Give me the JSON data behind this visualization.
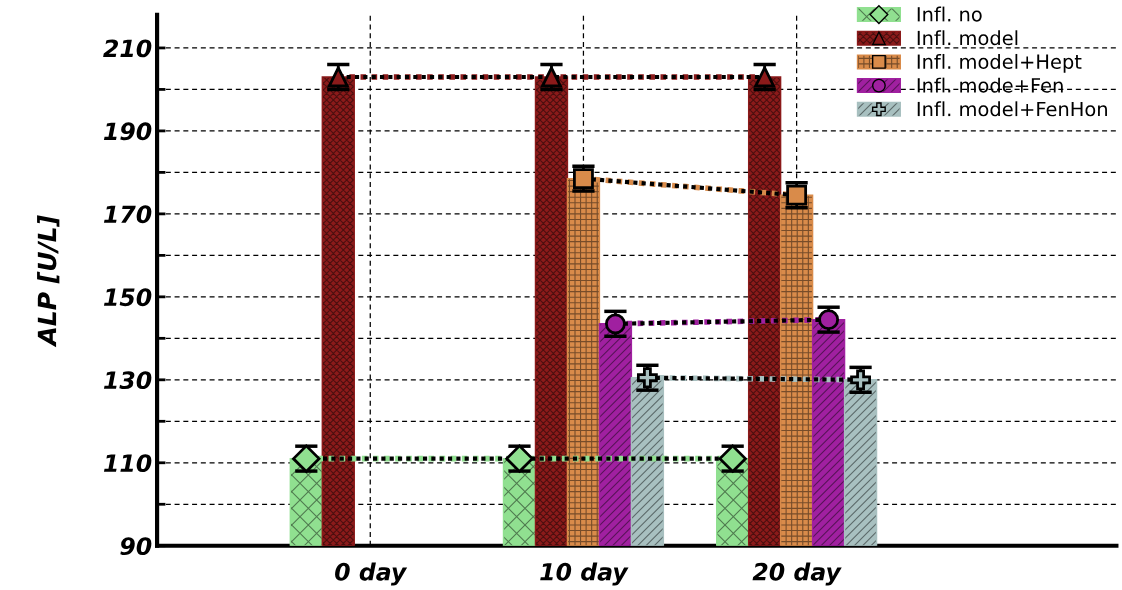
{
  "chart_data": {
    "type": "bar",
    "ylabel": "ALP [U/L]",
    "categories": [
      "0 day",
      "10 day",
      "20 day"
    ],
    "series": [
      {
        "name": "Infl. no",
        "color": "#90e090",
        "values": [
          111,
          111,
          111
        ]
      },
      {
        "name": "Infl. model",
        "color": "#8b1a1a",
        "values": [
          203,
          203,
          203
        ]
      },
      {
        "name": "Infl. model+Hept",
        "color": "#d98b4a",
        "values": [
          null,
          178.5,
          174.5
        ]
      },
      {
        "name": "Infl. mode+Fen",
        "color": "#a020a0",
        "values": [
          null,
          143.5,
          144.5
        ]
      },
      {
        "name": "Infl. model+FenHon",
        "color": "#a8c0c0",
        "values": [
          null,
          130.5,
          130
        ]
      },
      {
        "type": "line",
        "color": "#90e090",
        "values": [
          111,
          111,
          111
        ],
        "errors": [
          3,
          3,
          3
        ],
        "marker": "diamond",
        "line_style": "dotted"
      },
      {
        "type": "line",
        "color": "#8b1a1a",
        "values": [
          203,
          203,
          203
        ],
        "errors": [
          3,
          3,
          3
        ],
        "marker": "triangle",
        "line_style": "dotted"
      },
      {
        "type": "line",
        "color": "#d98b4a",
        "values": [
          null,
          178.5,
          174.5
        ],
        "errors": [
          null,
          3,
          3
        ],
        "marker": "square",
        "line_style": "dotted"
      },
      {
        "type": "line",
        "color": "#a020a0",
        "values": [
          null,
          143.5,
          144.5
        ],
        "errors": [
          null,
          3,
          3
        ],
        "marker": "circle",
        "line_style": "dotted"
      },
      {
        "type": "line",
        "color": "#a8c0c0",
        "values": [
          null,
          130.5,
          130
        ],
        "errors": [
          null,
          3,
          3
        ],
        "marker": "cross",
        "line_style": "dotted"
      }
    ],
    "ylim": [
      90,
      218
    ],
    "yticks": [
      90,
      {
        "value": 100,
        "label": null
      },
      110,
      {
        "value": 120,
        "label": null
      },
      130,
      {
        "value": 140,
        "label": null
      },
      150,
      {
        "value": 160,
        "label": null
      },
      170,
      {
        "value": 180,
        "label": null
      },
      190,
      {
        "value": 200,
        "label": null
      },
      210
    ],
    "grid": true,
    "legend": "top right"
  }
}
